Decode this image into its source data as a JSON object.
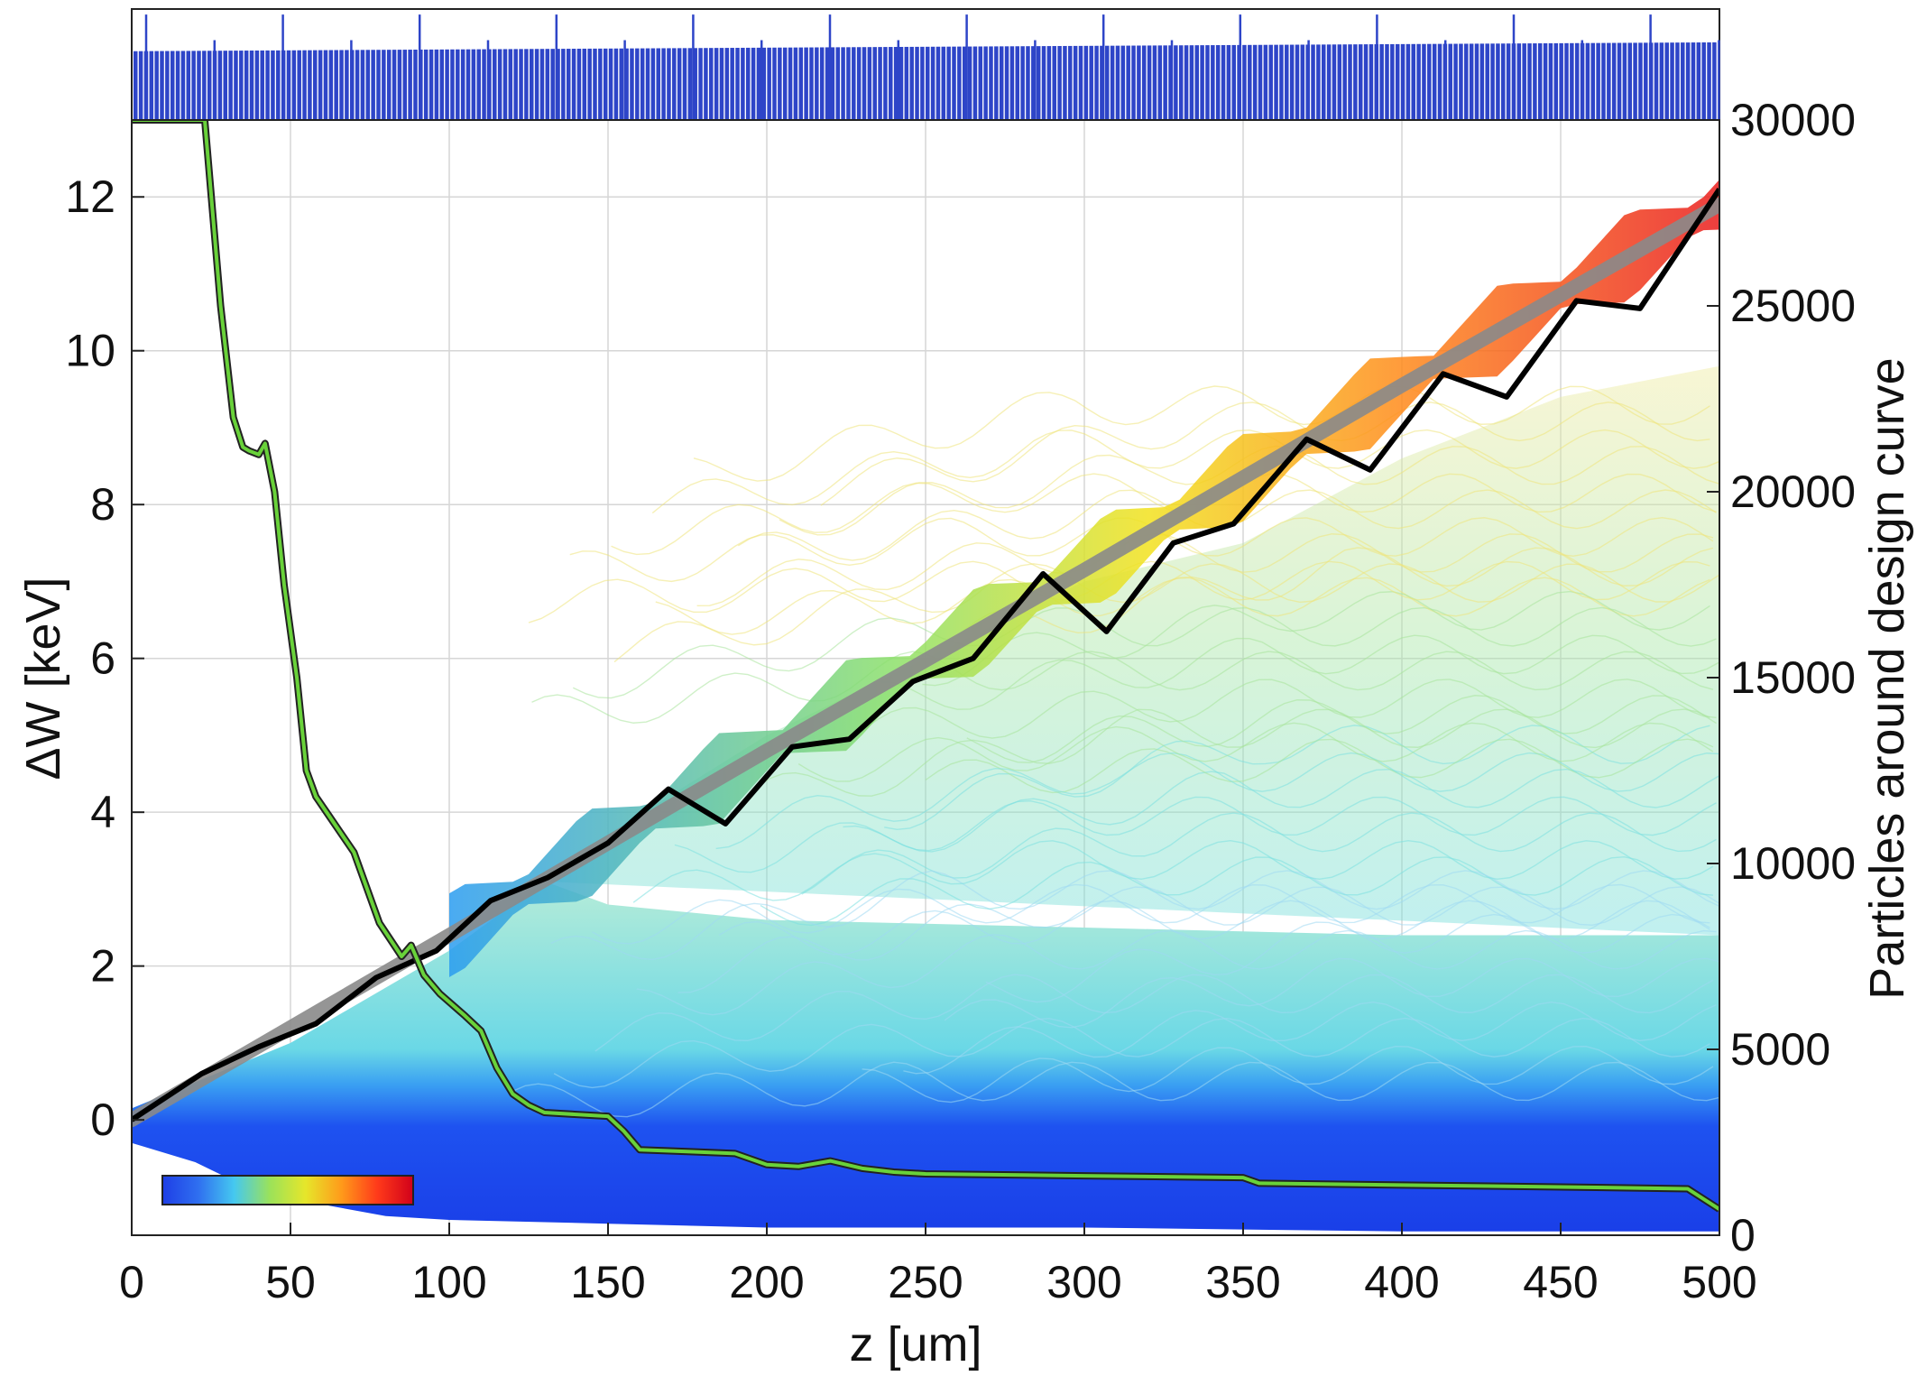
{
  "chart_data": {
    "type": "line",
    "xlabel": "z [um]",
    "ylabel": "ΔW [keV]",
    "y2label": "Particles around design curve",
    "xlim": [
      0,
      500
    ],
    "ylim": [
      -1.5,
      13
    ],
    "y2lim": [
      0,
      30000
    ],
    "x_ticks": [
      0,
      50,
      100,
      150,
      200,
      250,
      300,
      350,
      400,
      450,
      500
    ],
    "y_ticks": [
      0,
      2,
      4,
      6,
      8,
      10,
      12
    ],
    "y2_ticks": [
      0,
      5000,
      10000,
      15000,
      20000,
      25000,
      30000
    ],
    "grid": true,
    "colorbar": {
      "location": "bottom-left inset",
      "colors": [
        "#1e3ee6",
        "#2f6ff0",
        "#45c8f0",
        "#9be25a",
        "#e6e62a",
        "#ff9a1a",
        "#ff3a1a",
        "#d1001a"
      ]
    },
    "series": [
      {
        "role": "design-curve",
        "color": "#8a8a8a",
        "axis": "left",
        "x": [
          0,
          100,
          200,
          300,
          400,
          500
        ],
        "y": [
          0,
          2.4,
          4.8,
          7.15,
          9.55,
          11.9
        ]
      },
      {
        "role": "synchronous-particle",
        "color": "#000000",
        "axis": "left",
        "x": [
          0,
          22,
          40,
          58,
          77,
          96,
          113,
          131,
          150,
          169,
          187,
          208,
          226,
          246,
          265,
          287,
          307,
          328,
          347,
          370,
          390,
          413,
          433,
          455,
          475,
          500
        ],
        "y": [
          0,
          0.6,
          0.95,
          1.25,
          1.85,
          2.2,
          2.85,
          3.15,
          3.6,
          4.3,
          3.85,
          4.85,
          4.95,
          5.7,
          6.0,
          7.1,
          6.35,
          7.5,
          7.75,
          8.85,
          8.45,
          9.7,
          9.4,
          10.65,
          10.55,
          12.1
        ]
      },
      {
        "role": "particle-count",
        "color": "#69d23a",
        "axis": "right",
        "x": [
          0,
          23,
          25,
          28,
          32,
          35,
          37,
          40,
          42,
          45,
          48,
          52,
          55,
          58,
          62,
          70,
          78,
          85,
          88,
          92,
          97,
          105,
          110,
          115,
          120,
          125,
          130,
          140,
          150,
          155,
          160,
          175,
          190,
          200,
          210,
          220,
          230,
          240,
          250,
          300,
          350,
          355,
          400,
          450,
          490,
          500
        ],
        "y": [
          30000,
          30000,
          28000,
          25000,
          22000,
          21200,
          21100,
          21000,
          21300,
          20000,
          17500,
          15000,
          12500,
          11800,
          11300,
          10300,
          8400,
          7500,
          7800,
          7000,
          6500,
          5900,
          5500,
          4500,
          3800,
          3500,
          3300,
          3250,
          3200,
          2800,
          2300,
          2250,
          2200,
          1900,
          1850,
          2000,
          1800,
          1700,
          1650,
          1600,
          1550,
          1400,
          1350,
          1300,
          1250,
          700
        ]
      }
    ],
    "particle_cloud": {
      "description_of_bands": "shaded particle trajectories",
      "lower_envelope": [
        [
          0,
          -0.3
        ],
        [
          20,
          -0.55
        ],
        [
          40,
          -0.95
        ],
        [
          60,
          -1.1
        ],
        [
          80,
          -1.25
        ],
        [
          100,
          -1.3
        ],
        [
          150,
          -1.35
        ],
        [
          200,
          -1.4
        ],
        [
          300,
          -1.4
        ],
        [
          400,
          -1.45
        ],
        [
          500,
          -1.45
        ]
      ],
      "dense_upper": [
        [
          0,
          0.15
        ],
        [
          50,
          1.0
        ],
        [
          100,
          2.2
        ],
        [
          130,
          3.1
        ],
        [
          150,
          2.8
        ],
        [
          200,
          2.6
        ],
        [
          300,
          2.5
        ],
        [
          400,
          2.4
        ],
        [
          500,
          2.4
        ]
      ],
      "sparse_upper": [
        [
          130,
          3.2
        ],
        [
          200,
          5.0
        ],
        [
          250,
          6.0
        ],
        [
          300,
          7.0
        ],
        [
          350,
          7.5
        ],
        [
          400,
          8.6
        ],
        [
          450,
          9.4
        ],
        [
          500,
          9.8
        ]
      ]
    }
  }
}
